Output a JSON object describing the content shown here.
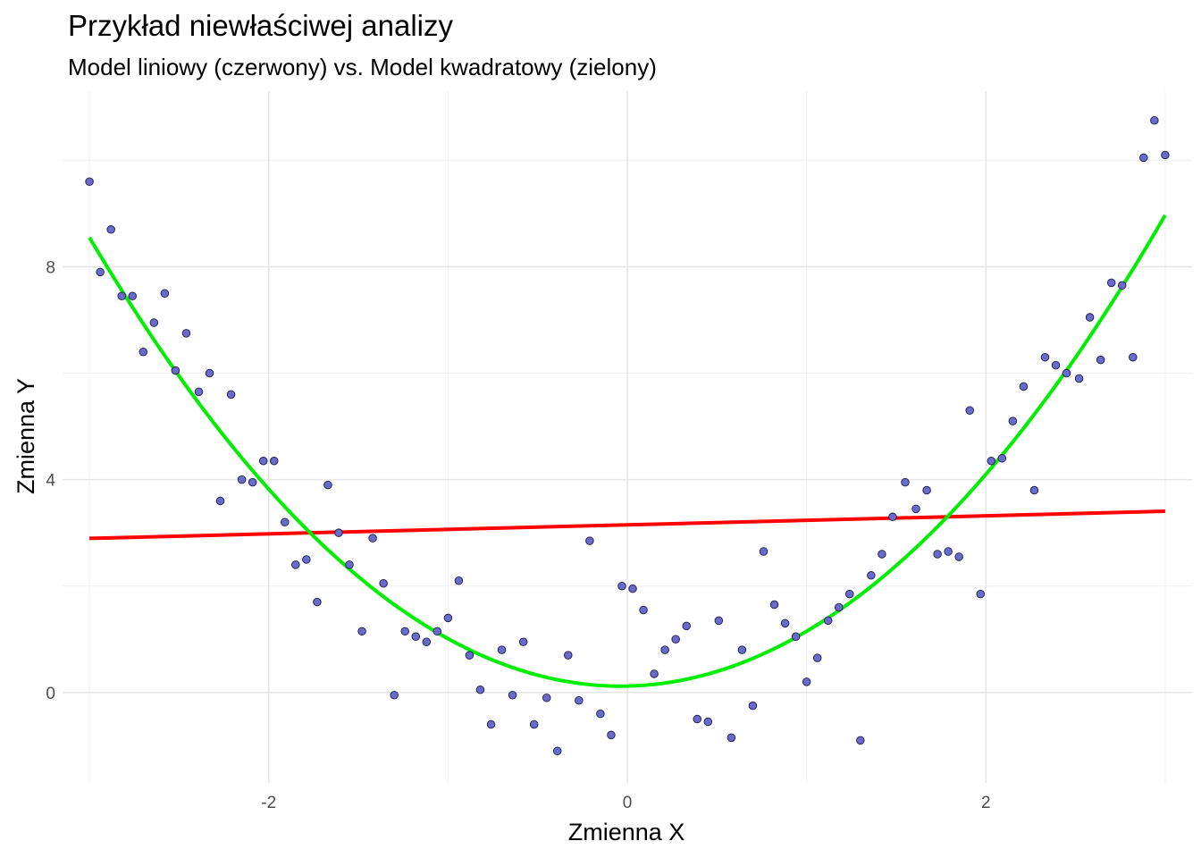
{
  "title": "Przykład niewłaściwej analizy",
  "subtitle": "Model liniowy (czerwony) vs. Model kwadratowy (zielony)",
  "chart_data": {
    "type": "scatter",
    "xlabel": "Zmienna X",
    "ylabel": "Zmienna Y",
    "xlim": [
      -3.15,
      3.15
    ],
    "ylim": [
      -1.7,
      11.3
    ],
    "x_ticks": [
      -2,
      0,
      2
    ],
    "x_tick_labels": [
      "-2",
      "0",
      "2"
    ],
    "y_ticks": [
      0,
      4,
      8
    ],
    "y_tick_labels": [
      "0",
      "4",
      "8"
    ],
    "grid": true,
    "colors": {
      "points_fill": "#6a6acd",
      "points_stroke": "#1c1c4a",
      "linear_model": "#ff0000",
      "quadratic_model": "#00ee00",
      "grid_major": "#e6e6e6",
      "grid_minor": "#f2f2f2"
    },
    "points": [
      [
        -3.0,
        9.6
      ],
      [
        -2.94,
        7.9
      ],
      [
        -2.88,
        8.7
      ],
      [
        -2.82,
        7.45
      ],
      [
        -2.76,
        7.45
      ],
      [
        -2.7,
        6.4
      ],
      [
        -2.64,
        6.95
      ],
      [
        -2.58,
        7.5
      ],
      [
        -2.52,
        6.05
      ],
      [
        -2.46,
        6.75
      ],
      [
        -2.39,
        5.65
      ],
      [
        -2.33,
        6.0
      ],
      [
        -2.27,
        3.6
      ],
      [
        -2.21,
        5.6
      ],
      [
        -2.15,
        4.0
      ],
      [
        -2.09,
        3.95
      ],
      [
        -2.03,
        4.35
      ],
      [
        -1.97,
        4.35
      ],
      [
        -1.91,
        3.2
      ],
      [
        -1.85,
        2.4
      ],
      [
        -1.79,
        2.5
      ],
      [
        -1.73,
        1.7
      ],
      [
        -1.67,
        3.9
      ],
      [
        -1.61,
        3.0
      ],
      [
        -1.55,
        2.4
      ],
      [
        -1.48,
        1.15
      ],
      [
        -1.42,
        2.9
      ],
      [
        -1.36,
        2.05
      ],
      [
        -1.3,
        -0.05
      ],
      [
        -1.24,
        1.15
      ],
      [
        -1.18,
        1.05
      ],
      [
        -1.12,
        0.95
      ],
      [
        -1.06,
        1.15
      ],
      [
        -1.0,
        1.4
      ],
      [
        -0.94,
        2.1
      ],
      [
        -0.88,
        0.7
      ],
      [
        -0.82,
        0.05
      ],
      [
        -0.76,
        -0.6
      ],
      [
        -0.7,
        0.8
      ],
      [
        -0.64,
        -0.05
      ],
      [
        -0.58,
        0.95
      ],
      [
        -0.52,
        -0.6
      ],
      [
        -0.45,
        -0.1
      ],
      [
        -0.39,
        -1.1
      ],
      [
        -0.33,
        0.7
      ],
      [
        -0.27,
        -0.15
      ],
      [
        -0.21,
        2.85
      ],
      [
        -0.15,
        -0.4
      ],
      [
        -0.09,
        -0.8
      ],
      [
        -0.03,
        2.0
      ],
      [
        0.03,
        1.95
      ],
      [
        0.09,
        1.55
      ],
      [
        0.15,
        0.35
      ],
      [
        0.21,
        0.8
      ],
      [
        0.27,
        1.0
      ],
      [
        0.33,
        1.25
      ],
      [
        0.39,
        -0.5
      ],
      [
        0.45,
        -0.55
      ],
      [
        0.51,
        1.35
      ],
      [
        0.58,
        -0.85
      ],
      [
        0.64,
        0.8
      ],
      [
        0.7,
        -0.25
      ],
      [
        0.76,
        2.65
      ],
      [
        0.82,
        1.65
      ],
      [
        0.88,
        1.3
      ],
      [
        0.94,
        1.05
      ],
      [
        1.0,
        0.2
      ],
      [
        1.06,
        0.65
      ],
      [
        1.12,
        1.35
      ],
      [
        1.18,
        1.6
      ],
      [
        1.24,
        1.85
      ],
      [
        1.3,
        -0.9
      ],
      [
        1.36,
        2.2
      ],
      [
        1.42,
        2.6
      ],
      [
        1.48,
        3.3
      ],
      [
        1.55,
        3.95
      ],
      [
        1.61,
        3.45
      ],
      [
        1.67,
        3.8
      ],
      [
        1.73,
        2.6
      ],
      [
        1.79,
        2.65
      ],
      [
        1.85,
        2.55
      ],
      [
        1.91,
        5.3
      ],
      [
        1.97,
        1.85
      ],
      [
        2.03,
        4.35
      ],
      [
        2.09,
        4.4
      ],
      [
        2.15,
        5.1
      ],
      [
        2.21,
        5.75
      ],
      [
        2.27,
        3.8
      ],
      [
        2.33,
        6.3
      ],
      [
        2.39,
        6.15
      ],
      [
        2.45,
        6.0
      ],
      [
        2.52,
        5.9
      ],
      [
        2.58,
        7.05
      ],
      [
        2.64,
        6.25
      ],
      [
        2.7,
        7.7
      ],
      [
        2.76,
        7.65
      ],
      [
        2.82,
        6.3
      ],
      [
        2.88,
        10.05
      ],
      [
        2.94,
        10.75
      ],
      [
        3.0,
        10.1
      ]
    ],
    "linear_model": {
      "intercept": 3.15,
      "slope": 0.085,
      "x_range": [
        -3.0,
        3.0
      ]
    },
    "quadratic_model": {
      "a": 0.96,
      "b": 0.07,
      "c": 0.12,
      "x_range": [
        -3.0,
        3.0
      ]
    }
  }
}
